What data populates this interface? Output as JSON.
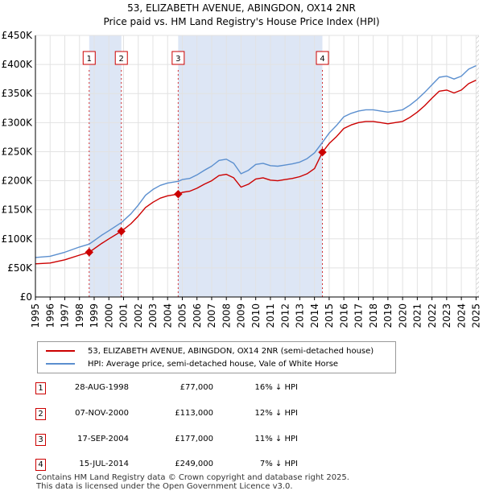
{
  "title_line1": "53, ELIZABETH AVENUE, ABINGDON, OX14 2NR",
  "title_line2": "Price paid vs. HM Land Registry's House Price Index (HPI)",
  "colors": {
    "property": "#cc0000",
    "hpi": "#5b8fcf",
    "shade": "#dde6f5"
  },
  "chart_data": {
    "type": "line",
    "x_ticks": [
      "1995",
      "1996",
      "1997",
      "1998",
      "1999",
      "2000",
      "2001",
      "2002",
      "2003",
      "2004",
      "2005",
      "2006",
      "2007",
      "2008",
      "2009",
      "2010",
      "2011",
      "2012",
      "2013",
      "2014",
      "2015",
      "2016",
      "2017",
      "2018",
      "2019",
      "2020",
      "2021",
      "2022",
      "2023",
      "2024",
      "2025"
    ],
    "y_ticks": [
      "£0",
      "£50K",
      "£100K",
      "£150K",
      "£200K",
      "£250K",
      "£300K",
      "£350K",
      "£400K",
      "£450K"
    ],
    "ylim": [
      0,
      450000
    ],
    "xlim": [
      1995.0,
      2025.2
    ],
    "series": [
      {
        "name": "hpi",
        "label": "HPI: Average price, semi-detached house, Vale of White Horse",
        "points": [
          [
            1995.0,
            68000
          ],
          [
            1996.0,
            70000
          ],
          [
            1997.0,
            77000
          ],
          [
            1998.0,
            86000
          ],
          [
            1998.66,
            91000
          ],
          [
            1999.0,
            97000
          ],
          [
            1999.5,
            106000
          ],
          [
            2000.0,
            114000
          ],
          [
            2000.85,
            128000
          ],
          [
            2001.5,
            143000
          ],
          [
            2002.0,
            158000
          ],
          [
            2002.5,
            175000
          ],
          [
            2003.0,
            185000
          ],
          [
            2003.5,
            192000
          ],
          [
            2004.0,
            196000
          ],
          [
            2004.72,
            199000
          ],
          [
            2005.0,
            202000
          ],
          [
            2005.5,
            204000
          ],
          [
            2006.0,
            210000
          ],
          [
            2006.5,
            218000
          ],
          [
            2007.0,
            225000
          ],
          [
            2007.5,
            235000
          ],
          [
            2008.0,
            237000
          ],
          [
            2008.5,
            230000
          ],
          [
            2009.0,
            212000
          ],
          [
            2009.5,
            218000
          ],
          [
            2010.0,
            228000
          ],
          [
            2010.5,
            230000
          ],
          [
            2011.0,
            226000
          ],
          [
            2011.5,
            225000
          ],
          [
            2012.0,
            227000
          ],
          [
            2012.5,
            229000
          ],
          [
            2013.0,
            232000
          ],
          [
            2013.5,
            238000
          ],
          [
            2014.0,
            248000
          ],
          [
            2014.54,
            266000
          ],
          [
            2015.0,
            282000
          ],
          [
            2015.5,
            295000
          ],
          [
            2016.0,
            310000
          ],
          [
            2016.5,
            316000
          ],
          [
            2017.0,
            320000
          ],
          [
            2017.5,
            322000
          ],
          [
            2018.0,
            322000
          ],
          [
            2018.5,
            320000
          ],
          [
            2019.0,
            318000
          ],
          [
            2019.5,
            320000
          ],
          [
            2020.0,
            322000
          ],
          [
            2020.5,
            330000
          ],
          [
            2021.0,
            340000
          ],
          [
            2021.5,
            352000
          ],
          [
            2022.0,
            365000
          ],
          [
            2022.5,
            378000
          ],
          [
            2023.0,
            380000
          ],
          [
            2023.5,
            375000
          ],
          [
            2024.0,
            380000
          ],
          [
            2024.5,
            392000
          ],
          [
            2025.0,
            398000
          ]
        ]
      },
      {
        "name": "property",
        "label": "53, ELIZABETH AVENUE, ABINGDON, OX14 2NR (semi-detached house)",
        "points": [
          [
            1995.0,
            57000
          ],
          [
            1996.0,
            58500
          ],
          [
            1997.0,
            64000
          ],
          [
            1998.0,
            72000
          ],
          [
            1998.66,
            77000
          ],
          [
            1999.0,
            83000
          ],
          [
            1999.5,
            92000
          ],
          [
            2000.0,
            100000
          ],
          [
            2000.85,
            113000
          ],
          [
            2001.5,
            126000
          ],
          [
            2002.0,
            139000
          ],
          [
            2002.5,
            154000
          ],
          [
            2003.0,
            163000
          ],
          [
            2003.5,
            170000
          ],
          [
            2004.0,
            174000
          ],
          [
            2004.72,
            177000
          ],
          [
            2005.0,
            180000
          ],
          [
            2005.5,
            182000
          ],
          [
            2006.0,
            187000
          ],
          [
            2006.5,
            194000
          ],
          [
            2007.0,
            200000
          ],
          [
            2007.5,
            209000
          ],
          [
            2008.0,
            211000
          ],
          [
            2008.5,
            205000
          ],
          [
            2009.0,
            189000
          ],
          [
            2009.5,
            194000
          ],
          [
            2010.0,
            203000
          ],
          [
            2010.5,
            205000
          ],
          [
            2011.0,
            201000
          ],
          [
            2011.5,
            200000
          ],
          [
            2012.0,
            202000
          ],
          [
            2012.5,
            204000
          ],
          [
            2013.0,
            207000
          ],
          [
            2013.5,
            212000
          ],
          [
            2014.0,
            221000
          ],
          [
            2014.54,
            249000
          ],
          [
            2015.0,
            264000
          ],
          [
            2015.5,
            276000
          ],
          [
            2016.0,
            290000
          ],
          [
            2016.5,
            296000
          ],
          [
            2017.0,
            300000
          ],
          [
            2017.5,
            302000
          ],
          [
            2018.0,
            302000
          ],
          [
            2018.5,
            300000
          ],
          [
            2019.0,
            298000
          ],
          [
            2019.5,
            300000
          ],
          [
            2020.0,
            302000
          ],
          [
            2020.5,
            309000
          ],
          [
            2021.0,
            318000
          ],
          [
            2021.5,
            329000
          ],
          [
            2022.0,
            342000
          ],
          [
            2022.5,
            354000
          ],
          [
            2023.0,
            356000
          ],
          [
            2023.5,
            351000
          ],
          [
            2024.0,
            356000
          ],
          [
            2024.5,
            367000
          ],
          [
            2025.0,
            373000
          ]
        ]
      }
    ],
    "sale_markers": [
      {
        "label": "1",
        "x": 1998.66,
        "y": 77000
      },
      {
        "label": "2",
        "x": 2000.85,
        "y": 113000
      },
      {
        "label": "3",
        "x": 2004.72,
        "y": 177000
      },
      {
        "label": "4",
        "x": 2014.54,
        "y": 249000
      }
    ],
    "shaded_ranges": [
      [
        1998.66,
        2000.85
      ],
      [
        2004.72,
        2014.54
      ]
    ],
    "hatched_from": 2025.0
  },
  "legend": {
    "property_label": "53, ELIZABETH AVENUE, ABINGDON, OX14 2NR (semi-detached house)",
    "hpi_label": "HPI: Average price, semi-detached house, Vale of White Horse"
  },
  "sales": [
    {
      "num": "1",
      "date": "28-AUG-1998",
      "price": "£77,000",
      "hpi": "16% ↓ HPI"
    },
    {
      "num": "2",
      "date": "07-NOV-2000",
      "price": "£113,000",
      "hpi": "12% ↓ HPI"
    },
    {
      "num": "3",
      "date": "17-SEP-2004",
      "price": "£177,000",
      "hpi": "11% ↓ HPI"
    },
    {
      "num": "4",
      "date": "15-JUL-2014",
      "price": "£249,000",
      "hpi": "7% ↓ HPI"
    }
  ],
  "footer_line1": "Contains HM Land Registry data © Crown copyright and database right 2025.",
  "footer_line2": "This data is licensed under the Open Government Licence v3.0."
}
